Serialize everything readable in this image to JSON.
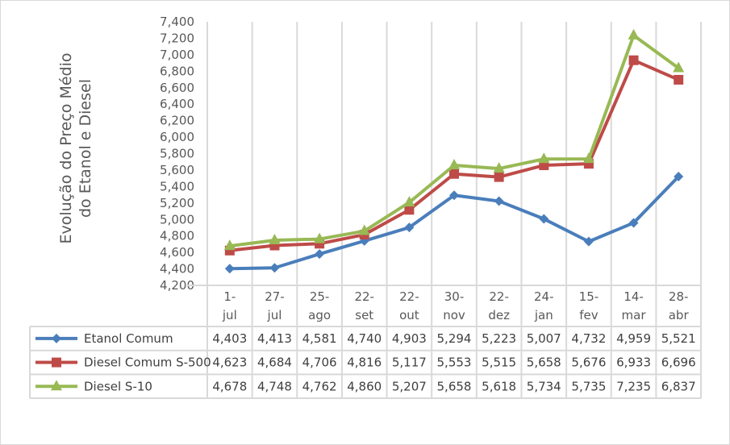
{
  "chart_data": {
    "type": "line",
    "title": "",
    "ylabel_lines": [
      "Evolução do Preço Médio",
      "do Etanol e Diesel"
    ],
    "xlabel": "",
    "ylim": [
      4200,
      7400
    ],
    "ytick_step": 200,
    "yticks": [
      "4,200",
      "4,400",
      "4,600",
      "4,800",
      "5,000",
      "5,200",
      "5,400",
      "5,600",
      "5,800",
      "6,000",
      "6,200",
      "6,400",
      "6,600",
      "6,800",
      "7,000",
      "7,200",
      "7,400"
    ],
    "grid": "vertical",
    "legend": "data-table",
    "categories": [
      [
        "1-",
        "jul"
      ],
      [
        "27-",
        "jul"
      ],
      [
        "25-",
        "ago"
      ],
      [
        "22-",
        "set"
      ],
      [
        "22-",
        "out"
      ],
      [
        "30-",
        "nov"
      ],
      [
        "22-",
        "dez"
      ],
      [
        "24-",
        "jan"
      ],
      [
        "15-",
        "fev"
      ],
      [
        "14-",
        "mar"
      ],
      [
        "28-",
        "abr"
      ]
    ],
    "series": [
      {
        "name": "Etanol Comum",
        "color": "#4a7ebb",
        "marker": "diamond",
        "values": [
          4403,
          4413,
          4581,
          4740,
          4903,
          5294,
          5223,
          5007,
          4732,
          4959,
          5521
        ],
        "labels": [
          "4,403",
          "4,413",
          "4,581",
          "4,740",
          "4,903",
          "5,294",
          "5,223",
          "5,007",
          "4,732",
          "4,959",
          "5,521"
        ]
      },
      {
        "name": "Diesel Comum S-500",
        "color": "#be4b48",
        "marker": "square",
        "values": [
          4623,
          4684,
          4706,
          4816,
          5117,
          5553,
          5515,
          5658,
          5676,
          6933,
          6696
        ],
        "labels": [
          "4,623",
          "4,684",
          "4,706",
          "4,816",
          "5,117",
          "5,553",
          "5,515",
          "5,658",
          "5,676",
          "6,933",
          "6,696"
        ]
      },
      {
        "name": "Diesel S-10",
        "color": "#98b954",
        "marker": "triangle",
        "values": [
          4678,
          4748,
          4762,
          4860,
          5207,
          5658,
          5618,
          5734,
          5735,
          7235,
          6837
        ],
        "labels": [
          "4,678",
          "4,748",
          "4,762",
          "4,860",
          "5,207",
          "5,658",
          "5,618",
          "5,734",
          "5,735",
          "7,235",
          "6,837"
        ]
      }
    ]
  }
}
